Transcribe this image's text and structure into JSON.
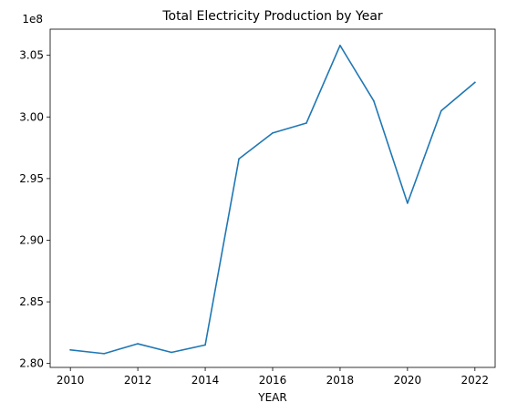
{
  "chart_data": {
    "type": "line",
    "title": "Total Electricity Production by Year",
    "xlabel": "YEAR",
    "ylabel": "",
    "y_offset_label": "1e8",
    "x": [
      2010,
      2011,
      2012,
      2013,
      2014,
      2015,
      2016,
      2017,
      2018,
      2019,
      2020,
      2021,
      2022
    ],
    "series": [
      {
        "values": [
          2.811,
          2.808,
          2.816,
          2.809,
          2.815,
          2.966,
          2.987,
          2.995,
          3.058,
          3.013,
          2.93,
          3.005,
          3.028
        ]
      }
    ],
    "xlim": [
      2009.4,
      2022.6
    ],
    "ylim": [
      2.7968,
      3.0712
    ],
    "xticks": [
      2010,
      2012,
      2014,
      2016,
      2018,
      2020,
      2022
    ],
    "xtick_labels": [
      "2010",
      "2012",
      "2014",
      "2016",
      "2018",
      "2020",
      "2022"
    ],
    "yticks": [
      2.8,
      2.85,
      2.9,
      2.95,
      3.0,
      3.05
    ],
    "ytick_labels": [
      "2.80",
      "2.85",
      "2.90",
      "2.95",
      "3.00",
      "3.05"
    ],
    "grid": false,
    "line_color": "#1f77b4"
  }
}
